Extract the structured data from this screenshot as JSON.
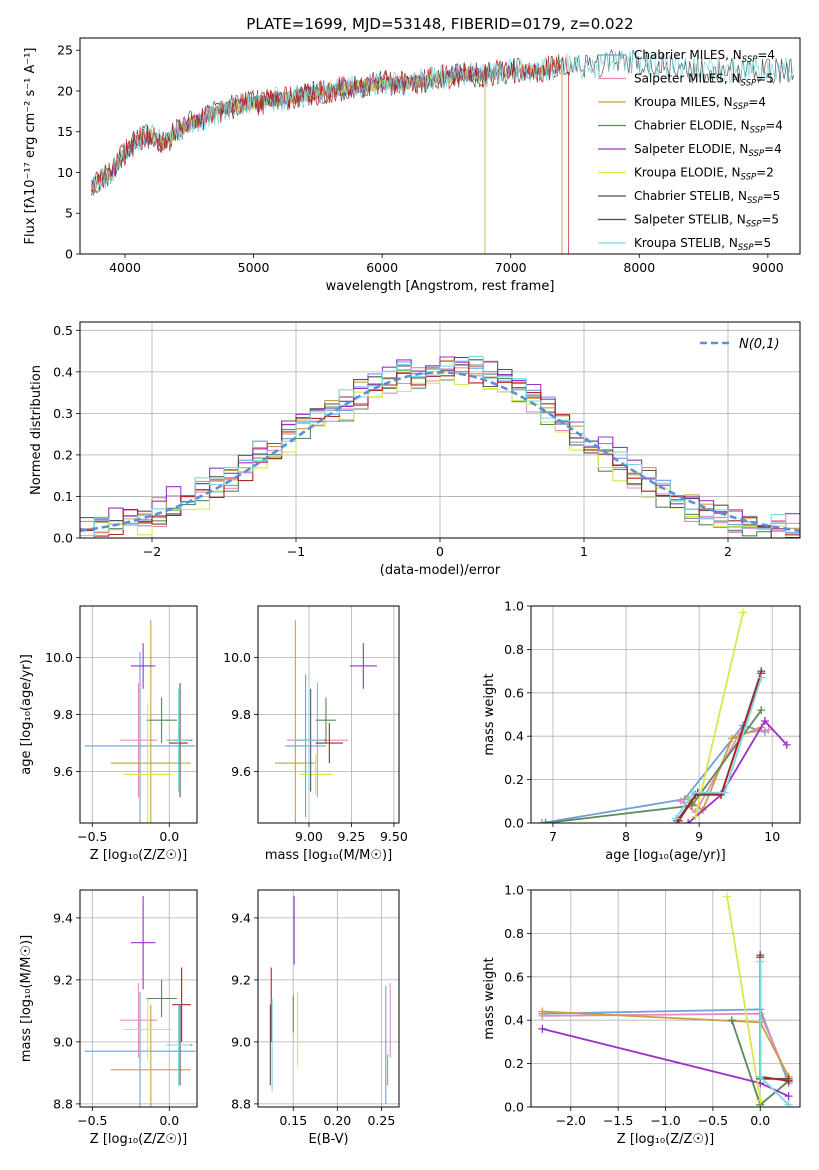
{
  "figure_title": "PLATE=1699, MJD=53148, FIBERID=0179, z=0.022",
  "colors": {
    "Chabrier MILES": "#6f9fd8",
    "Salpeter MILES": "#e78ac3",
    "Kroupa MILES": "#c8a042",
    "Chabrier ELODIE": "#5a8a5a",
    "Salpeter ELODIE": "#9b30c9",
    "Kroupa ELODIE": "#d8e850",
    "Chabrier STELIB": "#555555",
    "Salpeter STELIB": "#b22222",
    "Kroupa STELIB": "#7fd8e0",
    "orange": "#e8703a",
    "gaussian": "#5b8fd9"
  },
  "chart_data": [
    {
      "id": "spectrum",
      "type": "line",
      "title": "PLATE=1699, MJD=53148, FIBERID=0179, z=0.022",
      "xlabel": "wavelength [Angstrom, rest frame]",
      "ylabel": "Flux [fλ10⁻¹⁷ erg cm⁻² s⁻¹ A⁻¹]",
      "xlim": [
        3650,
        9250
      ],
      "ylim": [
        0,
        26.5
      ],
      "xticks": [
        4000,
        5000,
        6000,
        7000,
        8000,
        9000
      ],
      "yticks": [
        0,
        5,
        10,
        15,
        20,
        25
      ],
      "grid": false,
      "legend_position": "right",
      "legend": [
        {
          "label": "Chabrier MILES, N",
          "sub": "SSP",
          "eq": "=4",
          "color": "#6f9fd8"
        },
        {
          "label": "Salpeter MILES, N",
          "sub": "SSP",
          "eq": "=5",
          "color": "#e78ac3"
        },
        {
          "label": "Kroupa MILES, N",
          "sub": "SSP",
          "eq": "=4",
          "color": "#c8a042"
        },
        {
          "label": "Chabrier ELODIE, N",
          "sub": "SSP",
          "eq": "=4",
          "color": "#5a8a5a"
        },
        {
          "label": "Salpeter ELODIE, N",
          "sub": "SSP",
          "eq": "=4",
          "color": "#9b30c9"
        },
        {
          "label": "Kroupa ELODIE, N",
          "sub": "SSP",
          "eq": "=2",
          "color": "#d8e850"
        },
        {
          "label": "Chabrier STELIB, N",
          "sub": "SSP",
          "eq": "=5",
          "color": "#555555"
        },
        {
          "label": "Salpeter STELIB, N",
          "sub": "SSP",
          "eq": "=5",
          "color": "#b22222"
        },
        {
          "label": "Kroupa STELIB, N",
          "sub": "SSP",
          "eq": "=5",
          "color": "#7fd8e0"
        }
      ],
      "data_x": [
        3750,
        3900,
        4000,
        4100,
        4200,
        4300,
        4400,
        4500,
        4600,
        4800,
        5000,
        5200,
        5400,
        5600,
        5800,
        6000,
        6200,
        6400,
        6600,
        6800,
        7000,
        7200,
        7400,
        7600,
        7800,
        8000,
        8200,
        8400,
        8600,
        8800,
        9000,
        9200
      ],
      "data_y": [
        8.5,
        10,
        12.5,
        14,
        14.5,
        13.5,
        15,
        16,
        16.5,
        18,
        18.5,
        19,
        19.5,
        20,
        20.5,
        21,
        21,
        21.5,
        22,
        22,
        22.5,
        22.5,
        23,
        23,
        23.5,
        23.5,
        23,
        22.5,
        22.5,
        22.5,
        22.5,
        22.5
      ],
      "series_end_x": {
        "Chabrier MILES": 7400,
        "Salpeter MILES": 7400,
        "Kroupa MILES": 7400,
        "Chabrier ELODIE": 6800,
        "Salpeter ELODIE": 6800,
        "Kroupa ELODIE": 6800,
        "Chabrier STELIB": 9200,
        "Salpeter STELIB": 7450,
        "Kroupa STELIB": 9200
      }
    },
    {
      "id": "residuals",
      "type": "bar",
      "xlabel": "(data-model)/error",
      "ylabel": "Normed distribution",
      "xlim": [
        -2.5,
        2.5
      ],
      "ylim": [
        0,
        0.52
      ],
      "xticks": [
        -2,
        -1,
        0,
        1,
        2
      ],
      "yticks": [
        0.0,
        0.1,
        0.2,
        0.3,
        0.4,
        0.5
      ],
      "grid": true,
      "legend_position": "top-right",
      "legend": [
        {
          "label": "N(0,1)",
          "color": "#5b8fd9"
        }
      ],
      "bin_centers": [
        -2.45,
        -2.35,
        -2.25,
        -2.15,
        -2.05,
        -1.95,
        -1.85,
        -1.75,
        -1.65,
        -1.55,
        -1.45,
        -1.35,
        -1.25,
        -1.15,
        -1.05,
        -0.95,
        -0.85,
        -0.75,
        -0.65,
        -0.55,
        -0.45,
        -0.35,
        -0.25,
        -0.15,
        -0.05,
        0.05,
        0.15,
        0.25,
        0.35,
        0.45,
        0.55,
        0.65,
        0.75,
        0.85,
        0.95,
        1.05,
        1.15,
        1.25,
        1.35,
        1.45,
        1.55,
        1.65,
        1.75,
        1.85,
        1.95,
        2.05,
        2.15,
        2.25,
        2.35,
        2.45
      ],
      "bin_values": [
        0.02,
        0.03,
        0.04,
        0.05,
        0.05,
        0.06,
        0.08,
        0.09,
        0.11,
        0.13,
        0.15,
        0.17,
        0.2,
        0.21,
        0.25,
        0.27,
        0.28,
        0.3,
        0.32,
        0.35,
        0.37,
        0.38,
        0.39,
        0.4,
        0.41,
        0.41,
        0.41,
        0.4,
        0.39,
        0.38,
        0.36,
        0.34,
        0.31,
        0.28,
        0.25,
        0.23,
        0.2,
        0.18,
        0.15,
        0.13,
        0.11,
        0.09,
        0.07,
        0.06,
        0.05,
        0.04,
        0.03,
        0.03,
        0.02,
        0.02
      ],
      "series": [
        {
          "name": "Chabrier MILES",
          "offset": 0.01
        },
        {
          "name": "Salpeter MILES",
          "offset": -0.015
        },
        {
          "name": "Kroupa MILES",
          "offset": 0.02
        },
        {
          "name": "Chabrier ELODIE",
          "offset": -0.02
        },
        {
          "name": "Salpeter ELODIE",
          "offset": 0.03
        },
        {
          "name": "Kroupa ELODIE",
          "offset": -0.03
        },
        {
          "name": "Chabrier STELIB",
          "offset": 0.005
        },
        {
          "name": "Salpeter STELIB",
          "offset": -0.01
        },
        {
          "name": "Kroupa STELIB",
          "offset": 0.015
        }
      ]
    },
    {
      "id": "age_vs_Z",
      "type": "scatter",
      "xlabel": "Z [log₁₀(Z/Z☉)]",
      "ylabel": "age  [log₁₀(age/yr)]",
      "xlim": [
        -0.58,
        0.18
      ],
      "ylim": [
        9.42,
        10.18
      ],
      "xticks": [
        -0.5,
        0.0
      ],
      "xtick_labels": [
        "−0.5",
        "0.0"
      ],
      "yticks": [
        9.6,
        9.8,
        10.0
      ],
      "grid": true,
      "points": [
        {
          "series": "Chabrier MILES",
          "x": -0.19,
          "xerr": 0.36,
          "y": 9.69,
          "yerr": 0.33
        },
        {
          "series": "Salpeter MILES",
          "x": -0.2,
          "xerr": 0.12,
          "y": 9.71,
          "yerr": 0.2
        },
        {
          "series": "Kroupa MILES",
          "x": -0.12,
          "xerr": 0.26,
          "y": 9.63,
          "yerr": 0.5
        },
        {
          "series": "Chabrier ELODIE",
          "x": -0.05,
          "xerr": 0.1,
          "y": 9.78,
          "yerr": 0.08
        },
        {
          "series": "Salpeter ELODIE",
          "x": -0.17,
          "xerr": 0.08,
          "y": 9.97,
          "yerr": 0.08
        },
        {
          "series": "Kroupa ELODIE",
          "x": -0.14,
          "xerr": 0.16,
          "y": 9.59,
          "yerr": 0.25
        },
        {
          "series": "Chabrier STELIB",
          "x": 0.07,
          "xerr": 0.08,
          "y": 9.71,
          "yerr": 0.2
        },
        {
          "series": "Salpeter STELIB",
          "x": 0.06,
          "xerr": 0.06,
          "y": 9.7,
          "yerr": 0.05
        },
        {
          "series": "Kroupa STELIB",
          "x": 0.06,
          "xerr": 0.08,
          "y": 9.71,
          "yerr": 0.18
        }
      ]
    },
    {
      "id": "age_vs_mass",
      "type": "scatter",
      "xlabel": "mass [log₁₀(M/M☉)]",
      "ylabel": "",
      "xlim": [
        8.7,
        9.53
      ],
      "ylim": [
        9.42,
        10.18
      ],
      "xticks": [
        9.0,
        9.25,
        9.5
      ],
      "xtick_labels": [
        "9.00",
        "9.25",
        "9.50"
      ],
      "yticks": [
        9.6,
        9.8,
        10.0
      ],
      "grid": true,
      "points": [
        {
          "series": "Chabrier MILES",
          "x": 8.98,
          "xerr": 0.12,
          "y": 9.69,
          "yerr": 0.25
        },
        {
          "series": "Salpeter MILES",
          "x": 9.05,
          "xerr": 0.18,
          "y": 9.71,
          "yerr": 0.2
        },
        {
          "series": "Kroupa MILES",
          "x": 8.92,
          "xerr": 0.12,
          "y": 9.63,
          "yerr": 0.5
        },
        {
          "series": "Chabrier ELODIE",
          "x": 9.1,
          "xerr": 0.06,
          "y": 9.78,
          "yerr": 0.08
        },
        {
          "series": "Salpeter ELODIE",
          "x": 9.32,
          "xerr": 0.08,
          "y": 9.97,
          "yerr": 0.08
        },
        {
          "series": "Kroupa ELODIE",
          "x": 9.04,
          "xerr": 0.1,
          "y": 9.59,
          "yerr": 0.07
        },
        {
          "series": "Chabrier STELIB",
          "x": 9.01,
          "xerr": 0.09,
          "y": 9.71,
          "yerr": 0.18
        },
        {
          "series": "Salpeter STELIB",
          "x": 9.12,
          "xerr": 0.08,
          "y": 9.7,
          "yerr": 0.07
        },
        {
          "series": "Kroupa STELIB",
          "x": 9.0,
          "xerr": 0.09,
          "y": 9.71,
          "yerr": 0.18
        }
      ]
    },
    {
      "id": "weight_vs_age",
      "type": "line",
      "xlabel": "age  [log₁₀(age/yr)]",
      "ylabel": "mass weight",
      "xlim": [
        6.7,
        10.38
      ],
      "ylim": [
        0,
        1.0
      ],
      "xticks": [
        7,
        8,
        9,
        10
      ],
      "yticks": [
        0.0,
        0.2,
        0.4,
        0.6,
        0.8,
        1.0
      ],
      "grid": true,
      "series": [
        {
          "name": "Chabrier MILES",
          "x": [
            6.85,
            8.8,
            9.6,
            9.9
          ],
          "y": [
            0.0,
            0.11,
            0.45,
            0.42
          ]
        },
        {
          "name": "Salpeter MILES",
          "x": [
            8.75,
            8.95,
            9.55,
            9.95
          ],
          "y": [
            0.1,
            0.05,
            0.41,
            0.43
          ]
        },
        {
          "name": "Kroupa MILES",
          "x": [
            8.85,
            9.05,
            9.45,
            9.85
          ],
          "y": [
            0.11,
            0.06,
            0.39,
            0.44
          ]
        },
        {
          "name": "Chabrier ELODIE",
          "x": [
            6.9,
            8.9,
            9.85
          ],
          "y": [
            0.0,
            0.08,
            0.52
          ]
        },
        {
          "name": "Salpeter ELODIE",
          "x": [
            8.85,
            9.3,
            9.9,
            10.2
          ],
          "y": [
            0.0,
            0.13,
            0.47,
            0.36
          ]
        },
        {
          "name": "Kroupa ELODIE",
          "x": [
            8.95,
            9.6
          ],
          "y": [
            0.03,
            0.97
          ]
        },
        {
          "name": "Chabrier STELIB",
          "x": [
            8.7,
            8.95,
            9.3,
            9.85
          ],
          "y": [
            0.01,
            0.13,
            0.13,
            0.7
          ]
        },
        {
          "name": "Salpeter STELIB",
          "x": [
            8.72,
            8.98,
            9.3,
            9.85
          ],
          "y": [
            0.01,
            0.14,
            0.13,
            0.69
          ]
        },
        {
          "name": "Kroupa STELIB",
          "x": [
            8.68,
            8.92,
            9.35,
            9.85
          ],
          "y": [
            0.02,
            0.14,
            0.14,
            0.67
          ]
        }
      ]
    },
    {
      "id": "mass_vs_Z",
      "type": "scatter",
      "xlabel": "Z [log₁₀(Z/Z☉)]",
      "ylabel": "mass [log₁₀(M/M☉)]",
      "xlim": [
        -0.58,
        0.18
      ],
      "ylim": [
        8.79,
        9.49
      ],
      "xticks": [
        -0.5,
        0.0
      ],
      "xtick_labels": [
        "−0.5",
        "0.0"
      ],
      "yticks": [
        8.8,
        9.0,
        9.2,
        9.4
      ],
      "grid": true,
      "points": [
        {
          "series": "Chabrier MILES",
          "x": -0.19,
          "xerr": 0.36,
          "y": 8.97,
          "yerr": 0.19
        },
        {
          "series": "Salpeter MILES",
          "x": -0.2,
          "xerr": 0.12,
          "y": 9.07,
          "yerr": 0.12
        },
        {
          "series": "Kroupa MILES",
          "x": -0.12,
          "xerr": 0.26,
          "y": 8.91,
          "yerr": 0.21
        },
        {
          "series": "Chabrier ELODIE",
          "x": -0.05,
          "xerr": 0.1,
          "y": 9.14,
          "yerr": 0.06
        },
        {
          "series": "Salpeter ELODIE",
          "x": -0.17,
          "xerr": 0.08,
          "y": 9.32,
          "yerr": 0.15
        },
        {
          "series": "Kroupa ELODIE",
          "x": -0.14,
          "xerr": 0.16,
          "y": 9.04,
          "yerr": 0.1
        },
        {
          "series": "Chabrier STELIB",
          "x": 0.07,
          "xerr": 0.08,
          "y": 8.99,
          "yerr": 0.13
        },
        {
          "series": "Salpeter STELIB",
          "x": 0.08,
          "xerr": 0.06,
          "y": 9.12,
          "yerr": 0.12
        },
        {
          "series": "Kroupa STELIB",
          "x": 0.06,
          "xerr": 0.08,
          "y": 8.99,
          "yerr": 0.13
        }
      ]
    },
    {
      "id": "mass_vs_EBV",
      "type": "scatter",
      "xlabel": "E(B-V)",
      "ylabel": "",
      "xlim": [
        0.11,
        0.27
      ],
      "ylim": [
        8.79,
        9.49
      ],
      "xticks": [
        0.15,
        0.2,
        0.25
      ],
      "xtick_labels": [
        "0.15",
        "0.20",
        "0.25"
      ],
      "yticks": [
        8.8,
        9.0,
        9.2,
        9.4
      ],
      "grid": true,
      "points": [
        {
          "series": "Chabrier MILES",
          "x": 0.255,
          "xerr": 0,
          "y": 8.99,
          "yerr": 0.19
        },
        {
          "series": "Salpeter MILES",
          "x": 0.26,
          "xerr": 0,
          "y": 9.07,
          "yerr": 0.12
        },
        {
          "series": "Kroupa MILES",
          "x": 0.257,
          "xerr": 0,
          "y": 8.91,
          "yerr": 0.05
        },
        {
          "series": "Chabrier ELODIE",
          "x": 0.15,
          "xerr": 0,
          "y": 9.09,
          "yerr": 0.06
        },
        {
          "series": "Salpeter ELODIE",
          "x": 0.151,
          "xerr": 0,
          "y": 9.36,
          "yerr": 0.11
        },
        {
          "series": "Kroupa ELODIE",
          "x": 0.155,
          "xerr": 0,
          "y": 9.04,
          "yerr": 0.12
        },
        {
          "series": "Chabrier STELIB",
          "x": 0.124,
          "xerr": 0,
          "y": 8.99,
          "yerr": 0.13
        },
        {
          "series": "Salpeter STELIB",
          "x": 0.125,
          "xerr": 0,
          "y": 9.12,
          "yerr": 0.12
        },
        {
          "series": "Kroupa STELIB",
          "x": 0.126,
          "xerr": 0,
          "y": 8.99,
          "yerr": 0.15
        }
      ]
    },
    {
      "id": "weight_vs_Z",
      "type": "line",
      "xlabel": "Z [log₁₀(Z/Z☉)]",
      "ylabel": "mass weight",
      "xlim": [
        -2.42,
        0.42
      ],
      "ylim": [
        0,
        1.0
      ],
      "xticks": [
        -2.0,
        -1.5,
        -1.0,
        -0.5,
        0.0
      ],
      "xtick_labels": [
        "−2.0",
        "−1.5",
        "−1.0",
        "−0.5",
        "0.0"
      ],
      "yticks": [
        0.0,
        0.2,
        0.4,
        0.6,
        0.8,
        1.0
      ],
      "grid": true,
      "series": [
        {
          "name": "Chabrier MILES",
          "x": [
            -2.3,
            0.0,
            0.3
          ],
          "y": [
            0.43,
            0.45,
            0.11
          ]
        },
        {
          "name": "Salpeter MILES",
          "x": [
            -2.3,
            0.0,
            0.3
          ],
          "y": [
            0.42,
            0.43,
            0.13
          ]
        },
        {
          "name": "Kroupa MILES",
          "x": [
            -2.3,
            0.0,
            0.3
          ],
          "y": [
            0.44,
            0.39,
            0.14
          ]
        },
        {
          "name": "Chabrier ELODIE",
          "x": [
            -0.3,
            0.0,
            0.3
          ],
          "y": [
            0.4,
            0.01,
            0.12
          ]
        },
        {
          "name": "Salpeter ELODIE",
          "x": [
            -2.3,
            0.0,
            0.3
          ],
          "y": [
            0.36,
            0.11,
            0.05
          ]
        },
        {
          "name": "Kroupa ELODIE",
          "x": [
            -0.35,
            0.0
          ],
          "y": [
            0.97,
            0.03
          ]
        },
        {
          "name": "Chabrier STELIB",
          "x": [
            0.0,
            0.0,
            0.3
          ],
          "y": [
            0.7,
            0.13,
            0.13
          ]
        },
        {
          "name": "Salpeter STELIB",
          "x": [
            0.0,
            0.0,
            0.3
          ],
          "y": [
            0.69,
            0.14,
            0.12
          ]
        },
        {
          "name": "Kroupa STELIB",
          "x": [
            0.0,
            0.0,
            0.3
          ],
          "y": [
            0.67,
            0.14,
            0.01
          ]
        }
      ]
    }
  ]
}
